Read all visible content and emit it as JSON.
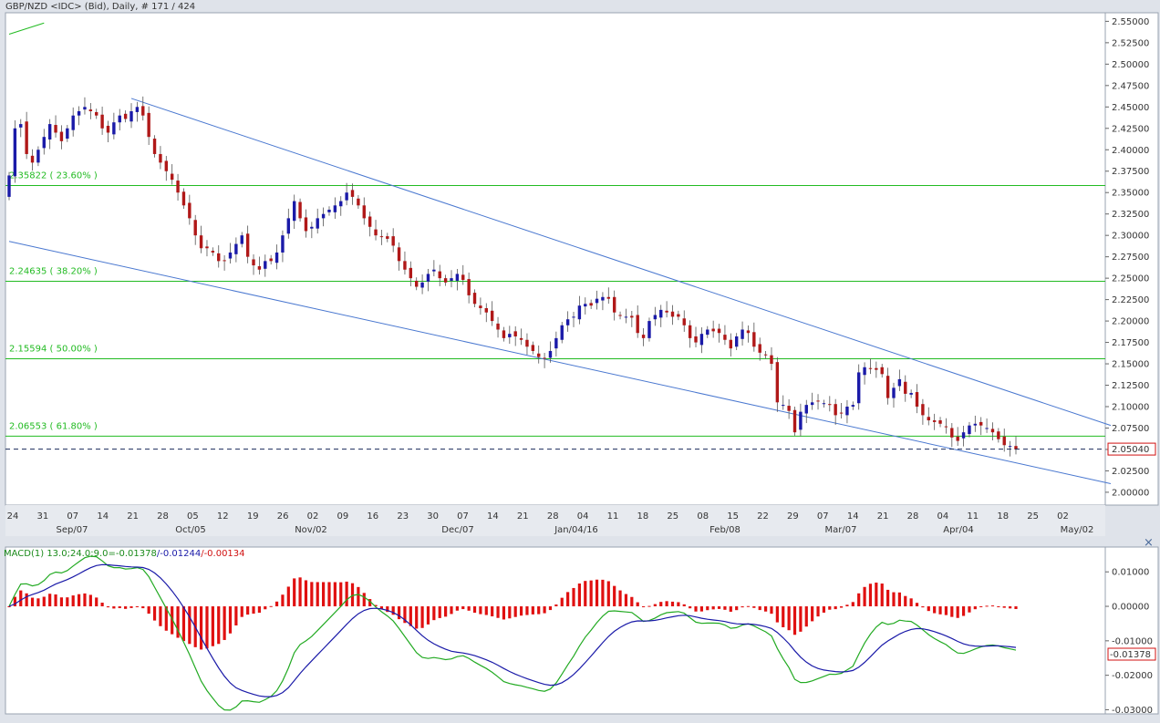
{
  "header": {
    "title": "GBP/NZD <IDC> (Bid), Daily, # 171 / 424"
  },
  "price_panel": {
    "y_ticks": [
      "2.55000",
      "2.52500",
      "2.50000",
      "2.47500",
      "2.45000",
      "2.42500",
      "2.40000",
      "2.37500",
      "2.35000",
      "2.32500",
      "2.30000",
      "2.27500",
      "2.25000",
      "2.22500",
      "2.20000",
      "2.17500",
      "2.15000",
      "2.12500",
      "2.10000",
      "2.07500",
      "2.05000",
      "2.02500",
      "2.00000"
    ],
    "current_price": "2.05040",
    "fib_levels": [
      {
        "label": "2.35822 ( 23.60% )",
        "value": 2.35822
      },
      {
        "label": "2.24635 ( 38.20% )",
        "value": 2.24635
      },
      {
        "label": "2.15594 ( 50.00% )",
        "value": 2.15594
      },
      {
        "label": "2.06553 ( 61.80% )",
        "value": 2.06553
      }
    ]
  },
  "x_axis": {
    "day_labels": [
      "24",
      "31",
      "07",
      "14",
      "21",
      "28",
      "05",
      "12",
      "19",
      "26",
      "02",
      "09",
      "16",
      "23",
      "30",
      "07",
      "14",
      "21",
      "28",
      "04",
      "11",
      "18",
      "25",
      "08",
      "15",
      "22",
      "29",
      "07",
      "14",
      "21",
      "28",
      "04",
      "11",
      "18",
      "25",
      "02"
    ],
    "month_labels": [
      "Sep/07",
      "Oct/05",
      "Nov/02",
      "Dec/07",
      "Jan/04/16",
      "Feb/08",
      "Mar/07",
      "Apr/04",
      "May/02"
    ]
  },
  "macd_panel": {
    "legend_prefix": "MACD(1) 13.0;24.0;9.0=",
    "macd_value": "-0.01378",
    "signal_value": "-0.01244",
    "hist_value": "-0.00134",
    "y_ticks": [
      "0.01000",
      "0.00000",
      "-0.01000",
      "-0.02000",
      "-0.03000"
    ],
    "current_value": "-0.01378",
    "close_glyph": "×"
  },
  "colors": {
    "background": "#ffffff",
    "frame": "#dfe3ea",
    "up_candle": "#1a1aa8",
    "down_candle": "#b01818",
    "fib_line": "#22bb22",
    "trend_line": "#4a78d0",
    "macd_line": "#22aa22",
    "signal_line": "#1a1aa8",
    "histogram": "#e01010",
    "price_marker": "#d01010",
    "text": "#333333"
  },
  "chart_data": {
    "type": "candlestick",
    "series_close": [
      2.37,
      2.425,
      2.43,
      2.395,
      2.385,
      2.4,
      2.415,
      2.43,
      2.42,
      2.41,
      2.425,
      2.44,
      2.445,
      2.45,
      2.445,
      2.44,
      2.425,
      2.42,
      2.432,
      2.44,
      2.436,
      2.445,
      2.45,
      2.44,
      2.415,
      2.395,
      2.385,
      2.375,
      2.365,
      2.35,
      2.335,
      2.32,
      2.3,
      2.285,
      2.285,
      2.28,
      2.27,
      2.27,
      2.28,
      2.29,
      2.3,
      2.275,
      2.265,
      2.26,
      2.27,
      2.27,
      2.28,
      2.3,
      2.32,
      2.34,
      2.32,
      2.305,
      2.31,
      2.32,
      2.325,
      2.33,
      2.335,
      2.34,
      2.35,
      2.345,
      2.335,
      2.32,
      2.31,
      2.3,
      2.298,
      2.296,
      2.288,
      2.27,
      2.26,
      2.25,
      2.24,
      2.245,
      2.255,
      2.26,
      2.25,
      2.245,
      2.25,
      2.255,
      2.248,
      2.23,
      2.22,
      2.215,
      2.21,
      2.2,
      2.19,
      2.18,
      2.185,
      2.182,
      2.178,
      2.17,
      2.165,
      2.158,
      2.156,
      2.165,
      2.18,
      2.195,
      2.202,
      2.205,
      2.218,
      2.22,
      2.218,
      2.226,
      2.228,
      2.226,
      2.21,
      2.206,
      2.205,
      2.204,
      2.186,
      2.18,
      2.2,
      2.207,
      2.213,
      2.21,
      2.205,
      2.205,
      2.195,
      2.18,
      2.175,
      2.185,
      2.19,
      2.188,
      2.186,
      2.178,
      2.168,
      2.182,
      2.19,
      2.186,
      2.17,
      2.163,
      2.16,
      2.15,
      2.105,
      2.102,
      2.095,
      2.07,
      2.094,
      2.102,
      2.105,
      2.106,
      2.104,
      2.102,
      2.09,
      2.092,
      2.1,
      2.102,
      2.14,
      2.146,
      2.144,
      2.143,
      2.138,
      2.11,
      2.122,
      2.132,
      2.115,
      2.116,
      2.1,
      2.09,
      2.084,
      2.082,
      2.08,
      2.076,
      2.064,
      2.06,
      2.07,
      2.078,
      2.08,
      2.078,
      2.075,
      2.07,
      2.062,
      2.055,
      2.054,
      2.05
    ],
    "y_range": [
      1.985,
      2.56
    ],
    "fibonacci": [
      2.35822,
      2.24635,
      2.15594,
      2.06553
    ],
    "last_price": 2.0504,
    "macd": {
      "macd": -0.01378,
      "signal": -0.01244,
      "histogram": -0.00134,
      "y_range": [
        -0.0312,
        0.0172
      ]
    }
  }
}
